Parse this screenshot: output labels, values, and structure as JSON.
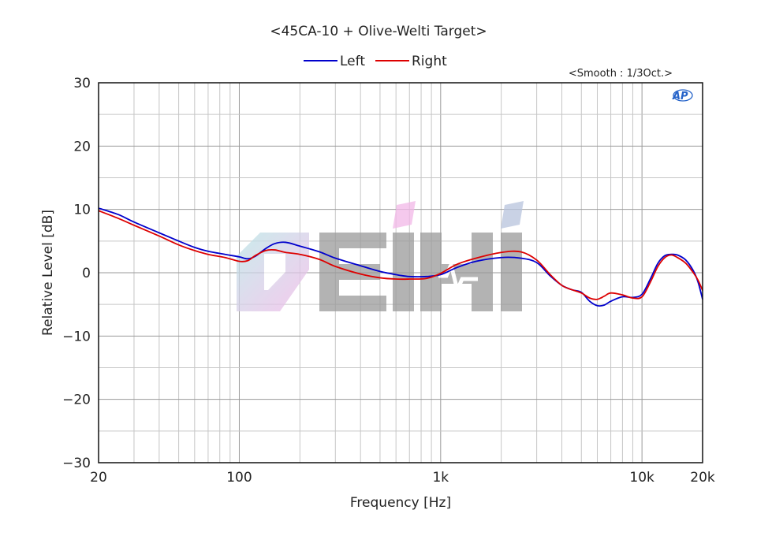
{
  "chart_data": {
    "type": "line",
    "title": "<45CA-10 + Olive-Welti Target>",
    "smoothing_note": "<Smooth : 1/3Oct.>",
    "xlabel": "Frequency [Hz]",
    "ylabel": "Relative Level [dB]",
    "x_scale": "log",
    "xlim": [
      20,
      20000
    ],
    "ylim": [
      -30,
      30
    ],
    "x_ticks": [
      {
        "value": 20,
        "label": "20"
      },
      {
        "value": 100,
        "label": "100"
      },
      {
        "value": 1000,
        "label": "1k"
      },
      {
        "value": 10000,
        "label": "10k"
      },
      {
        "value": 20000,
        "label": "20k"
      }
    ],
    "y_ticks": [
      {
        "value": 30,
        "label": "30"
      },
      {
        "value": 20,
        "label": "20"
      },
      {
        "value": 10,
        "label": "10"
      },
      {
        "value": 0,
        "label": "0"
      },
      {
        "value": -10,
        "label": "−10"
      },
      {
        "value": -20,
        "label": "−20"
      },
      {
        "value": -30,
        "label": "−30"
      }
    ],
    "grid": true,
    "legend_position": "top-center",
    "series": [
      {
        "name": "Left",
        "color": "#0000cc",
        "points": [
          [
            20,
            10.2
          ],
          [
            25,
            9.2
          ],
          [
            30,
            8.0
          ],
          [
            40,
            6.3
          ],
          [
            50,
            5.0
          ],
          [
            60,
            4.0
          ],
          [
            70,
            3.4
          ],
          [
            85,
            2.9
          ],
          [
            100,
            2.5
          ],
          [
            110,
            2.2
          ],
          [
            120,
            2.6
          ],
          [
            135,
            3.8
          ],
          [
            150,
            4.6
          ],
          [
            170,
            4.8
          ],
          [
            200,
            4.2
          ],
          [
            250,
            3.3
          ],
          [
            300,
            2.3
          ],
          [
            400,
            1.1
          ],
          [
            500,
            0.2
          ],
          [
            600,
            -0.3
          ],
          [
            700,
            -0.6
          ],
          [
            850,
            -0.6
          ],
          [
            1000,
            -0.3
          ],
          [
            1200,
            0.8
          ],
          [
            1500,
            1.8
          ],
          [
            2000,
            2.4
          ],
          [
            2500,
            2.3
          ],
          [
            3000,
            1.6
          ],
          [
            3500,
            -0.5
          ],
          [
            4000,
            -2.0
          ],
          [
            4500,
            -2.7
          ],
          [
            5000,
            -3.1
          ],
          [
            5500,
            -4.5
          ],
          [
            6000,
            -5.2
          ],
          [
            6500,
            -5.1
          ],
          [
            7000,
            -4.5
          ],
          [
            8000,
            -3.8
          ],
          [
            9000,
            -3.9
          ],
          [
            10000,
            -3.4
          ],
          [
            11000,
            -1.0
          ],
          [
            12000,
            1.5
          ],
          [
            13000,
            2.7
          ],
          [
            14000,
            2.9
          ],
          [
            15000,
            2.8
          ],
          [
            16500,
            2.0
          ],
          [
            18000,
            0.3
          ],
          [
            19000,
            -1.5
          ],
          [
            20000,
            -4.2
          ]
        ]
      },
      {
        "name": "Right",
        "color": "#dd0000",
        "points": [
          [
            20,
            9.8
          ],
          [
            25,
            8.6
          ],
          [
            30,
            7.5
          ],
          [
            40,
            5.8
          ],
          [
            50,
            4.4
          ],
          [
            60,
            3.5
          ],
          [
            70,
            2.9
          ],
          [
            85,
            2.4
          ],
          [
            100,
            1.8
          ],
          [
            110,
            1.9
          ],
          [
            120,
            2.7
          ],
          [
            135,
            3.5
          ],
          [
            150,
            3.6
          ],
          [
            170,
            3.2
          ],
          [
            200,
            2.9
          ],
          [
            250,
            2.1
          ],
          [
            300,
            1.0
          ],
          [
            400,
            -0.2
          ],
          [
            500,
            -0.8
          ],
          [
            600,
            -1.0
          ],
          [
            700,
            -1.0
          ],
          [
            850,
            -0.9
          ],
          [
            1000,
            -0.1
          ],
          [
            1200,
            1.3
          ],
          [
            1500,
            2.3
          ],
          [
            2000,
            3.2
          ],
          [
            2500,
            3.3
          ],
          [
            3000,
            2.0
          ],
          [
            3500,
            -0.3
          ],
          [
            4000,
            -2.0
          ],
          [
            4500,
            -2.7
          ],
          [
            5000,
            -3.2
          ],
          [
            5500,
            -4.0
          ],
          [
            6000,
            -4.2
          ],
          [
            6500,
            -3.7
          ],
          [
            7000,
            -3.2
          ],
          [
            8000,
            -3.5
          ],
          [
            9000,
            -4.0
          ],
          [
            10000,
            -3.8
          ],
          [
            11000,
            -1.5
          ],
          [
            12000,
            1.0
          ],
          [
            13000,
            2.4
          ],
          [
            14000,
            2.8
          ],
          [
            15000,
            2.4
          ],
          [
            16500,
            1.5
          ],
          [
            18000,
            0.0
          ],
          [
            19000,
            -1.2
          ],
          [
            20000,
            -2.8
          ]
        ]
      }
    ]
  },
  "watermark": {
    "text": "deihi",
    "colors": [
      "#f2b8e8",
      "#b9e6e6",
      "#b8c4dd"
    ]
  },
  "ap_logo": {
    "text": "AP",
    "color": "#2563c9"
  }
}
